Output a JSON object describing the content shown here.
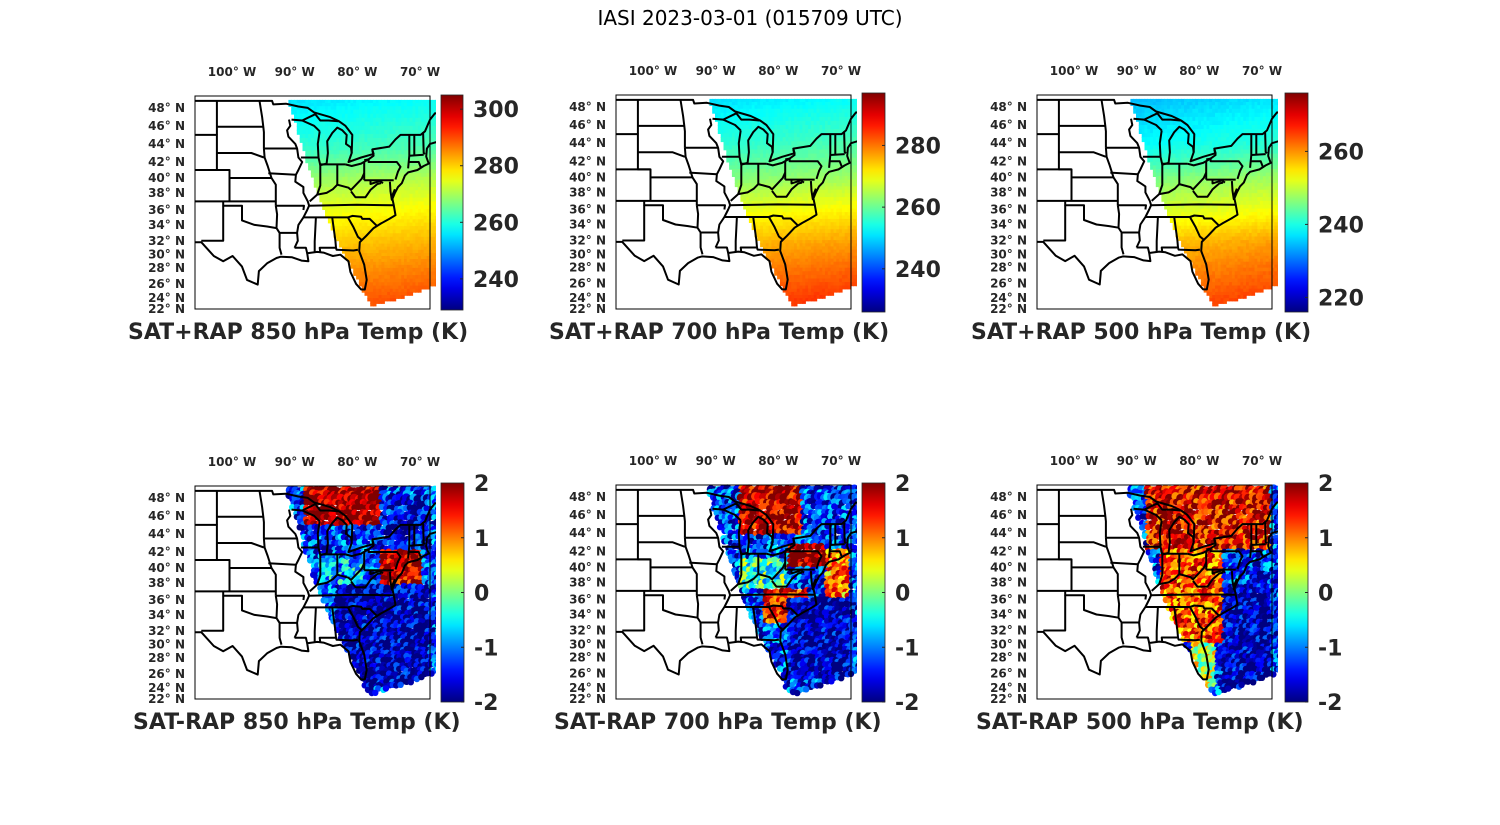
{
  "figure": {
    "title": "IASI 2023-03-01 (015709 UTC)"
  },
  "chart_data": [
    {
      "type": "heatmap",
      "title": "SAT+RAP 850 hPa Temp (K)",
      "map": "eastern-CONUS state outlines",
      "xticklabels": [
        "100° W",
        "90° W",
        "80° W",
        "70° W"
      ],
      "xticks_lon": [
        -100,
        -90,
        -80,
        -70
      ],
      "yticklabels": [
        "48° N",
        "46° N",
        "44° N",
        "42° N",
        "40° N",
        "38° N",
        "36° N",
        "34° N",
        "32° N",
        "30° N",
        "28° N",
        "26° N",
        "24° N",
        "22° N"
      ],
      "yticks_lat": [
        48,
        46,
        44,
        42,
        40,
        38,
        36,
        34,
        32,
        30,
        28,
        26,
        24,
        22
      ],
      "colormap": "jet",
      "clim": [
        229,
        305
      ],
      "colorbar_ticks": [
        240,
        260,
        280,
        300
      ],
      "colorbar_ticklabels": [
        "240",
        "260",
        "280",
        "300"
      ],
      "field_description": "swath values: ~258 K in north (Great Lakes/Canada), ~272 K mid-Atlantic, ~285-290 K Florida/Gulf",
      "field_profile": {
        "lat": [
          49,
          44,
          40,
          36,
          32,
          28,
          24
        ],
        "value": [
          257,
          262,
          270,
          276,
          281,
          285,
          289
        ]
      },
      "kind": "sum"
    },
    {
      "type": "heatmap",
      "title": "SAT+RAP 700 hPa Temp (K)",
      "map": "eastern-CONUS state outlines",
      "xticklabels": [
        "100° W",
        "90° W",
        "80° W",
        "70° W"
      ],
      "xticks_lon": [
        -100,
        -90,
        -80,
        -70
      ],
      "yticklabels": [
        "48° N",
        "46° N",
        "44° N",
        "42° N",
        "40° N",
        "38° N",
        "36° N",
        "34° N",
        "32° N",
        "30° N",
        "28° N",
        "26° N",
        "24° N",
        "22° N"
      ],
      "yticks_lat": [
        48,
        46,
        44,
        42,
        40,
        38,
        36,
        34,
        32,
        30,
        28,
        26,
        24,
        22
      ],
      "colormap": "jet",
      "clim": [
        226,
        297
      ],
      "colorbar_ticks": [
        240,
        260,
        280
      ],
      "colorbar_ticklabels": [
        "240",
        "260",
        "280"
      ],
      "field_description": "swath values: ~253 K north, ~266 K mid-Atlantic, ~282-285 K south Florida",
      "field_profile": {
        "lat": [
          49,
          44,
          40,
          36,
          32,
          28,
          24
        ],
        "value": [
          252,
          257,
          263,
          270,
          276,
          280,
          284
        ]
      },
      "kind": "sum"
    },
    {
      "type": "heatmap",
      "title": "SAT+RAP 500 hPa Temp (K)",
      "map": "eastern-CONUS state outlines",
      "xticklabels": [
        "100° W",
        "90° W",
        "80° W",
        "70° W"
      ],
      "xticks_lon": [
        -100,
        -90,
        -80,
        -70
      ],
      "yticklabels": [
        "48° N",
        "46° N",
        "44° N",
        "42° N",
        "40° N",
        "38° N",
        "36° N",
        "34° N",
        "32° N",
        "30° N",
        "28° N",
        "26° N",
        "24° N",
        "22° N"
      ],
      "yticks_lat": [
        48,
        46,
        44,
        42,
        40,
        38,
        36,
        34,
        32,
        30,
        28,
        26,
        24,
        22
      ],
      "colormap": "jet",
      "clim": [
        216,
        276
      ],
      "colorbar_ticks": [
        220,
        240,
        260
      ],
      "colorbar_ticklabels": [
        "220",
        "240",
        "260"
      ],
      "field_description": "swath values: ~237 K north, ~250 K mid-Atlantic, ~262-265 K Florida",
      "field_profile": {
        "lat": [
          49,
          44,
          40,
          36,
          32,
          28,
          24
        ],
        "value": [
          236,
          240,
          247,
          252,
          258,
          261,
          264
        ]
      },
      "kind": "sum"
    },
    {
      "type": "heatmap",
      "title": "SAT-RAP 850 hPa Temp (K)",
      "map": "eastern-CONUS state outlines",
      "xticklabels": [
        "100° W",
        "90° W",
        "80° W",
        "70° W"
      ],
      "xticks_lon": [
        -100,
        -90,
        -80,
        -70
      ],
      "yticklabels": [
        "48° N",
        "46° N",
        "44° N",
        "42° N",
        "40° N",
        "38° N",
        "36° N",
        "34° N",
        "32° N",
        "30° N",
        "28° N",
        "26° N",
        "24° N",
        "22° N"
      ],
      "yticks_lat": [
        48,
        46,
        44,
        42,
        40,
        38,
        36,
        34,
        32,
        30,
        28,
        26,
        24,
        22
      ],
      "colormap": "jet",
      "clim": [
        -2,
        2
      ],
      "colorbar_ticks": [
        -2,
        -1,
        0,
        1,
        2
      ],
      "colorbar_ticklabels": [
        "-2",
        "-1",
        "0",
        "1",
        "2"
      ],
      "field_description": "scattered differences: strongly positive (+2) over Lake Superior/upper Michigan and PA/NJ coast; mostly -1 to -2 over Atlantic and Southeast; mixed over Ohio Valley",
      "regions": [
        {
          "lat": [
            45,
            49.5
          ],
          "lon": [
            -90,
            -78
          ],
          "value": 2
        },
        {
          "lat": [
            38,
            42
          ],
          "lon": [
            -78,
            -71
          ],
          "value": 1.8
        },
        {
          "lat": [
            36,
            41
          ],
          "lon": [
            -88,
            -80
          ],
          "value": -0.8
        },
        {
          "lat": [
            24,
            38
          ],
          "lon": [
            -85,
            -70
          ],
          "value": -1.8
        },
        {
          "lat": [
            42,
            48
          ],
          "lon": [
            -78,
            -70
          ],
          "value": -1.6
        }
      ],
      "kind": "diff"
    },
    {
      "type": "heatmap",
      "title": "SAT-RAP 700 hPa Temp (K)",
      "map": "eastern-CONUS state outlines",
      "xticklabels": [
        "100° W",
        "90° W",
        "80° W",
        "70° W"
      ],
      "xticks_lon": [
        -100,
        -90,
        -80,
        -70
      ],
      "yticklabels": [
        "48° N",
        "46° N",
        "44° N",
        "42° N",
        "40° N",
        "38° N",
        "36° N",
        "34° N",
        "32° N",
        "30° N",
        "28° N",
        "26° N",
        "24° N",
        "22° N"
      ],
      "yticks_lat": [
        48,
        46,
        44,
        42,
        40,
        38,
        36,
        34,
        32,
        30,
        28,
        26,
        24,
        22
      ],
      "colormap": "jet",
      "clim": [
        -2,
        2
      ],
      "colorbar_ticks": [
        -2,
        -1,
        0,
        1,
        2
      ],
      "colorbar_ticklabels": [
        "-2",
        "-1",
        "0",
        "1",
        "2"
      ],
      "field_description": "positive (+1.5 to +2) over Lake Superior/Huron and Pennsylvania and Carolinas; near 0 over Indiana/Ohio; -1.5 to -2 over the Atlantic south of 36N",
      "regions": [
        {
          "lat": [
            44,
            49.5
          ],
          "lon": [
            -88,
            -78
          ],
          "value": 1.8
        },
        {
          "lat": [
            40,
            42.5
          ],
          "lon": [
            -80,
            -74
          ],
          "value": 2
        },
        {
          "lat": [
            37,
            41
          ],
          "lon": [
            -88,
            -80
          ],
          "value": -0.3
        },
        {
          "lat": [
            33,
            37
          ],
          "lon": [
            -84,
            -77
          ],
          "value": 1.5
        },
        {
          "lat": [
            25,
            36
          ],
          "lon": [
            -80,
            -70
          ],
          "value": -1.8
        },
        {
          "lat": [
            36,
            42
          ],
          "lon": [
            -74,
            -70
          ],
          "value": 1.0
        }
      ],
      "kind": "diff"
    },
    {
      "type": "heatmap",
      "title": "SAT-RAP 500 hPa Temp (K)",
      "map": "eastern-CONUS state outlines",
      "xticklabels": [
        "100° W",
        "90° W",
        "80° W",
        "70° W"
      ],
      "xticks_lon": [
        -100,
        -90,
        -80,
        -70
      ],
      "yticklabels": [
        "48° N",
        "46° N",
        "44° N",
        "42° N",
        "40° N",
        "38° N",
        "36° N",
        "34° N",
        "32° N",
        "30° N",
        "28° N",
        "26° N",
        "24° N",
        "22° N"
      ],
      "yticks_lat": [
        48,
        46,
        44,
        42,
        40,
        38,
        36,
        34,
        32,
        30,
        28,
        26,
        24,
        22
      ],
      "colormap": "jet",
      "clim": [
        -2,
        2
      ],
      "colorbar_ticks": [
        -2,
        -1,
        0,
        1,
        2
      ],
      "colorbar_ticklabels": [
        "-2",
        "-1",
        "0",
        "1",
        "2"
      ],
      "field_description": "mostly positive (+1 to +2) over land from Great Lakes to Georgia; -1.5 to -2 over Atlantic east of coast south of 38N",
      "regions": [
        {
          "lat": [
            42,
            49.5
          ],
          "lon": [
            -90,
            -70
          ],
          "value": 1.6
        },
        {
          "lat": [
            30,
            42
          ],
          "lon": [
            -88,
            -78
          ],
          "value": 1.2
        },
        {
          "lat": [
            24,
            38
          ],
          "lon": [
            -78,
            -70
          ],
          "value": -1.8
        },
        {
          "lat": [
            24,
            30
          ],
          "lon": [
            -83,
            -79
          ],
          "value": 0.3
        }
      ],
      "kind": "diff"
    }
  ]
}
